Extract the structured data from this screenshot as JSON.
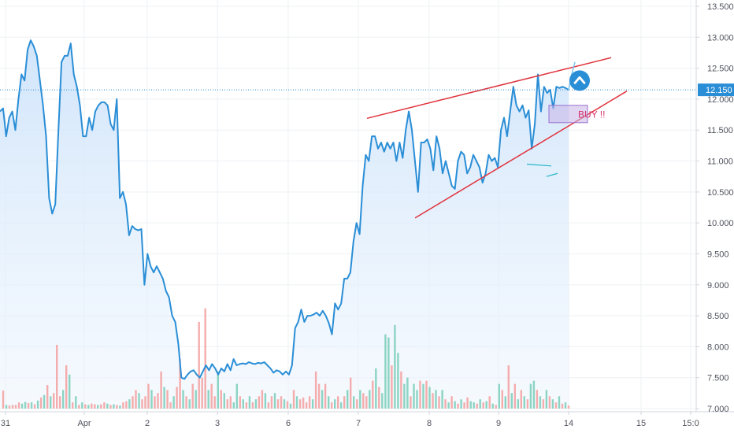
{
  "chart_data": {
    "type": "line",
    "y_ticks": [
      "13.500",
      "13.000",
      "12.500",
      "12.000",
      "11.500",
      "11.000",
      "10.500",
      "10.000",
      "9.500",
      "9.000",
      "8.500",
      "8.000",
      "7.500",
      "7.000"
    ],
    "ylim": [
      7.0,
      13.5
    ],
    "x_ticks": [
      "31",
      "Apr",
      "2",
      "3",
      "6",
      "7",
      "8",
      "9",
      "14",
      "15",
      "15:0"
    ],
    "last_price_label": "12.150",
    "colors": {
      "line": "#2a8ed6",
      "area_top": "#cfe4fb",
      "trendline": "#e0333d",
      "vol_up": "#7fcfbd",
      "vol_down": "#f4a3a3",
      "grid": "#eef0f3",
      "badge": "#2a8ed6"
    },
    "annotations": [
      {
        "text": "BUY !!",
        "color": "#d6336c"
      }
    ],
    "series": [
      {
        "values": [
          11.8,
          11.85,
          11.4,
          11.7,
          11.8,
          11.5,
          12.0,
          12.4,
          12.3,
          12.8,
          12.95,
          12.85,
          12.7,
          12.3,
          11.9,
          11.4,
          10.4,
          10.15,
          10.3,
          11.5,
          12.6,
          12.7,
          12.7,
          12.9,
          12.4,
          12.2,
          11.9,
          11.4,
          11.4,
          11.7,
          11.5,
          11.8,
          11.9,
          11.95,
          11.95,
          11.9,
          11.6,
          11.5,
          12.0,
          10.4,
          10.5,
          10.3,
          9.8,
          9.95,
          9.9,
          9.88,
          9.9,
          9.0,
          9.5,
          9.3,
          9.2,
          9.3,
          9.2,
          9.1,
          8.9,
          8.8,
          8.5,
          8.4,
          8.05,
          7.5,
          7.48,
          7.55,
          7.6,
          7.62,
          7.55,
          7.5,
          7.6,
          7.7,
          7.62,
          7.72,
          7.65,
          7.55,
          7.65,
          7.6,
          7.72,
          7.62,
          7.8,
          7.7,
          7.72,
          7.73,
          7.72,
          7.75,
          7.73,
          7.72,
          7.74,
          7.73,
          7.75,
          7.7,
          7.65,
          7.58,
          7.62,
          7.6,
          7.55,
          7.6,
          7.55,
          7.7,
          8.3,
          8.4,
          8.6,
          8.4,
          8.5,
          8.5,
          8.52,
          8.55,
          8.5,
          8.58,
          8.5,
          8.38,
          8.2,
          8.7,
          8.6,
          8.7,
          9.1,
          9.1,
          9.2,
          9.7,
          10.0,
          9.82,
          10.6,
          11.1,
          11.0,
          11.4,
          11.4,
          11.2,
          11.3,
          11.15,
          11.3,
          11.2,
          11.3,
          11.0,
          11.3,
          11.05,
          11.5,
          11.8,
          11.5,
          11.0,
          10.5,
          11.3,
          11.3,
          11.35,
          11.2,
          10.85,
          11.4,
          11.2,
          10.8,
          11.0,
          10.8,
          10.6,
          10.55,
          11.0,
          11.15,
          11.1,
          10.8,
          10.9,
          11.1,
          11.0,
          10.9,
          10.65,
          10.8,
          11.1,
          11.0,
          11.05,
          10.9,
          11.5,
          11.7,
          11.4,
          11.8,
          12.2,
          11.9,
          11.8,
          11.9,
          11.7,
          11.82,
          11.2,
          11.6,
          12.4,
          11.8,
          12.2,
          12.1,
          12.15,
          11.85,
          12.2,
          12.18,
          12.2,
          12.18,
          12.15
        ]
      }
    ],
    "volumes": [
      {
        "v": 7.29,
        "c": "down"
      },
      {
        "v": 7.06,
        "c": "up"
      },
      {
        "v": 7.05,
        "c": "down"
      },
      {
        "v": 7.06,
        "c": "down"
      },
      {
        "v": 7.06,
        "c": "down"
      },
      {
        "v": 7.1,
        "c": "down"
      },
      {
        "v": 7.08,
        "c": "up"
      },
      {
        "v": 7.11,
        "c": "up"
      },
      {
        "v": 7.09,
        "c": "down"
      },
      {
        "v": 7.1,
        "c": "up"
      },
      {
        "v": 7.07,
        "c": "down"
      },
      {
        "v": 7.13,
        "c": "up"
      },
      {
        "v": 7.18,
        "c": "down"
      },
      {
        "v": 7.22,
        "c": "up"
      },
      {
        "v": 7.38,
        "c": "down"
      },
      {
        "v": 7.2,
        "c": "up"
      },
      {
        "v": 7.25,
        "c": "down"
      },
      {
        "v": 8.03,
        "c": "down"
      },
      {
        "v": 7.2,
        "c": "down"
      },
      {
        "v": 7.3,
        "c": "up"
      },
      {
        "v": 7.7,
        "c": "down"
      },
      {
        "v": 7.55,
        "c": "up"
      },
      {
        "v": 7.1,
        "c": "down"
      },
      {
        "v": 7.2,
        "c": "up"
      },
      {
        "v": 7.06,
        "c": "down"
      },
      {
        "v": 7.1,
        "c": "up"
      },
      {
        "v": 7.07,
        "c": "down"
      },
      {
        "v": 7.06,
        "c": "up"
      },
      {
        "v": 7.08,
        "c": "down"
      },
      {
        "v": 7.07,
        "c": "down"
      },
      {
        "v": 7.06,
        "c": "up"
      },
      {
        "v": 7.07,
        "c": "down"
      },
      {
        "v": 7.1,
        "c": "down"
      },
      {
        "v": 7.08,
        "c": "up"
      },
      {
        "v": 7.06,
        "c": "down"
      },
      {
        "v": 7.07,
        "c": "up"
      },
      {
        "v": 7.06,
        "c": "down"
      },
      {
        "v": 7.05,
        "c": "up"
      },
      {
        "v": 7.1,
        "c": "down"
      },
      {
        "v": 7.12,
        "c": "down"
      },
      {
        "v": 7.15,
        "c": "up"
      },
      {
        "v": 7.2,
        "c": "down"
      },
      {
        "v": 7.3,
        "c": "down"
      },
      {
        "v": 7.25,
        "c": "up"
      },
      {
        "v": 7.15,
        "c": "down"
      },
      {
        "v": 7.2,
        "c": "down"
      },
      {
        "v": 7.4,
        "c": "down"
      },
      {
        "v": 7.3,
        "c": "up"
      },
      {
        "v": 7.2,
        "c": "down"
      },
      {
        "v": 7.25,
        "c": "down"
      },
      {
        "v": 7.6,
        "c": "down"
      },
      {
        "v": 7.35,
        "c": "up"
      },
      {
        "v": 7.3,
        "c": "down"
      },
      {
        "v": 7.1,
        "c": "down"
      },
      {
        "v": 7.2,
        "c": "up"
      },
      {
        "v": 7.35,
        "c": "down"
      },
      {
        "v": 7.8,
        "c": "down"
      },
      {
        "v": 7.3,
        "c": "up"
      },
      {
        "v": 7.2,
        "c": "down"
      },
      {
        "v": 7.15,
        "c": "up"
      },
      {
        "v": 7.4,
        "c": "down"
      },
      {
        "v": 7.3,
        "c": "up"
      },
      {
        "v": 8.4,
        "c": "down"
      },
      {
        "v": 7.5,
        "c": "down"
      },
      {
        "v": 8.62,
        "c": "down"
      },
      {
        "v": 7.3,
        "c": "up"
      },
      {
        "v": 7.4,
        "c": "down"
      },
      {
        "v": 7.2,
        "c": "down"
      },
      {
        "v": 7.6,
        "c": "up"
      },
      {
        "v": 7.3,
        "c": "down"
      },
      {
        "v": 7.25,
        "c": "up"
      },
      {
        "v": 7.15,
        "c": "down"
      },
      {
        "v": 7.2,
        "c": "down"
      },
      {
        "v": 7.1,
        "c": "up"
      },
      {
        "v": 7.4,
        "c": "up"
      },
      {
        "v": 7.2,
        "c": "down"
      },
      {
        "v": 7.15,
        "c": "up"
      },
      {
        "v": 7.1,
        "c": "down"
      },
      {
        "v": 7.2,
        "c": "up"
      },
      {
        "v": 7.1,
        "c": "down"
      },
      {
        "v": 7.15,
        "c": "up"
      },
      {
        "v": 7.2,
        "c": "down"
      },
      {
        "v": 7.3,
        "c": "down"
      },
      {
        "v": 7.25,
        "c": "up"
      },
      {
        "v": 7.1,
        "c": "down"
      },
      {
        "v": 7.2,
        "c": "down"
      },
      {
        "v": 7.25,
        "c": "up"
      },
      {
        "v": 7.15,
        "c": "down"
      },
      {
        "v": 7.2,
        "c": "down"
      },
      {
        "v": 7.15,
        "c": "up"
      },
      {
        "v": 7.12,
        "c": "down"
      },
      {
        "v": 7.08,
        "c": "up"
      },
      {
        "v": 7.3,
        "c": "down"
      },
      {
        "v": 7.2,
        "c": "up"
      },
      {
        "v": 7.15,
        "c": "down"
      },
      {
        "v": 7.18,
        "c": "down"
      },
      {
        "v": 7.1,
        "c": "down"
      },
      {
        "v": 7.2,
        "c": "down"
      },
      {
        "v": 7.15,
        "c": "up"
      },
      {
        "v": 7.6,
        "c": "down"
      },
      {
        "v": 7.4,
        "c": "down"
      },
      {
        "v": 7.3,
        "c": "up"
      },
      {
        "v": 7.4,
        "c": "down"
      },
      {
        "v": 7.2,
        "c": "up"
      },
      {
        "v": 7.1,
        "c": "down"
      },
      {
        "v": 7.15,
        "c": "up"
      },
      {
        "v": 7.2,
        "c": "down"
      },
      {
        "v": 7.1,
        "c": "up"
      },
      {
        "v": 7.2,
        "c": "down"
      },
      {
        "v": 7.3,
        "c": "up"
      },
      {
        "v": 7.5,
        "c": "down"
      },
      {
        "v": 7.2,
        "c": "up"
      },
      {
        "v": 7.15,
        "c": "down"
      },
      {
        "v": 7.3,
        "c": "up"
      },
      {
        "v": 7.25,
        "c": "down"
      },
      {
        "v": 7.2,
        "c": "down"
      },
      {
        "v": 7.3,
        "c": "up"
      },
      {
        "v": 7.45,
        "c": "down"
      },
      {
        "v": 7.65,
        "c": "up"
      },
      {
        "v": 7.35,
        "c": "down"
      },
      {
        "v": 7.25,
        "c": "up"
      },
      {
        "v": 8.2,
        "c": "up"
      },
      {
        "v": 8.15,
        "c": "up"
      },
      {
        "v": 7.7,
        "c": "down"
      },
      {
        "v": 8.35,
        "c": "up"
      },
      {
        "v": 7.9,
        "c": "up"
      },
      {
        "v": 7.6,
        "c": "down"
      },
      {
        "v": 7.4,
        "c": "up"
      },
      {
        "v": 7.5,
        "c": "up"
      },
      {
        "v": 7.2,
        "c": "down"
      },
      {
        "v": 7.4,
        "c": "up"
      },
      {
        "v": 7.3,
        "c": "up"
      },
      {
        "v": 7.45,
        "c": "down"
      },
      {
        "v": 7.4,
        "c": "up"
      },
      {
        "v": 7.45,
        "c": "down"
      },
      {
        "v": 7.35,
        "c": "up"
      },
      {
        "v": 7.25,
        "c": "down"
      },
      {
        "v": 7.3,
        "c": "up"
      },
      {
        "v": 7.2,
        "c": "down"
      },
      {
        "v": 7.3,
        "c": "up"
      },
      {
        "v": 7.15,
        "c": "down"
      },
      {
        "v": 7.1,
        "c": "up"
      },
      {
        "v": 7.2,
        "c": "down"
      },
      {
        "v": 7.12,
        "c": "up"
      },
      {
        "v": 7.08,
        "c": "down"
      },
      {
        "v": 7.15,
        "c": "up"
      },
      {
        "v": 7.1,
        "c": "down"
      },
      {
        "v": 7.18,
        "c": "down"
      },
      {
        "v": 7.12,
        "c": "up"
      },
      {
        "v": 7.1,
        "c": "up"
      },
      {
        "v": 7.08,
        "c": "down"
      },
      {
        "v": 7.15,
        "c": "up"
      },
      {
        "v": 7.1,
        "c": "down"
      },
      {
        "v": 7.12,
        "c": "up"
      },
      {
        "v": 7.2,
        "c": "down"
      },
      {
        "v": 7.08,
        "c": "up"
      },
      {
        "v": 7.06,
        "c": "down"
      },
      {
        "v": 7.4,
        "c": "up"
      },
      {
        "v": 7.3,
        "c": "down"
      },
      {
        "v": 7.2,
        "c": "up"
      },
      {
        "v": 7.7,
        "c": "down"
      },
      {
        "v": 7.25,
        "c": "up"
      },
      {
        "v": 7.4,
        "c": "down"
      },
      {
        "v": 7.15,
        "c": "up"
      },
      {
        "v": 7.3,
        "c": "down"
      },
      {
        "v": 7.2,
        "c": "up"
      },
      {
        "v": 7.15,
        "c": "down"
      },
      {
        "v": 7.4,
        "c": "up"
      },
      {
        "v": 7.45,
        "c": "up"
      },
      {
        "v": 7.3,
        "c": "down"
      },
      {
        "v": 7.2,
        "c": "up"
      },
      {
        "v": 7.15,
        "c": "down"
      },
      {
        "v": 7.3,
        "c": "up"
      },
      {
        "v": 7.2,
        "c": "down"
      },
      {
        "v": 7.15,
        "c": "up"
      },
      {
        "v": 7.1,
        "c": "down"
      },
      {
        "v": 7.2,
        "c": "up"
      },
      {
        "v": 7.08,
        "c": "down"
      },
      {
        "v": 7.1,
        "c": "up"
      },
      {
        "v": 7.05,
        "c": "down"
      }
    ]
  }
}
